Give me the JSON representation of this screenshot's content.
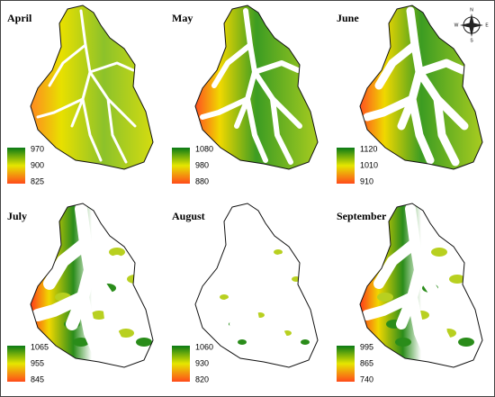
{
  "panels": [
    {
      "title": "April",
      "legend": [
        970,
        900,
        825
      ]
    },
    {
      "title": "May",
      "legend": [
        1080,
        980,
        880
      ]
    },
    {
      "title": "June",
      "legend": [
        1120,
        1010,
        910
      ]
    },
    {
      "title": "July",
      "legend": [
        1065,
        955,
        845
      ]
    },
    {
      "title": "August",
      "legend": [
        1060,
        930,
        820
      ]
    },
    {
      "title": "September",
      "legend": [
        995,
        865,
        740
      ]
    }
  ],
  "compass": {
    "n": "N",
    "e": "E",
    "s": "S",
    "w": "W"
  }
}
